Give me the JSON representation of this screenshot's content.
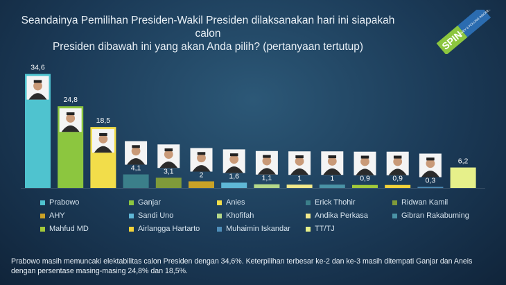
{
  "title_lines": [
    "Seandainya Pemilihan Presiden-Wakil Presiden dilaksanakan hari ini siapakah calon",
    "Presiden dibawah ini yang akan Anda pilih? (pertanyaan tertutup)"
  ],
  "logo": {
    "text": "SPIN",
    "subtext": "SURVEY & POLLING INDONESIA",
    "color": "#8cc63f"
  },
  "footer": "Prabowo masih memuncaki elektabilitas calon Presiden dengan 34,6%. Keterpilihan terbesar ke-2 dan ke-3 masih ditempati Ganjar dan Aneis dengan persentase masing-masing 24,8% dan 18,5%.",
  "chart_data": {
    "type": "bar",
    "categories": [
      "Prabowo",
      "Ganjar",
      "Anies",
      "Erick Thohir",
      "Ridwan Kamil",
      "AHY",
      "Sandi Uno",
      "Khofifah",
      "Andika Perkasa",
      "Gibran Rakabuming",
      "Mahfud MD",
      "Airlangga Hartarto",
      "Muhaimin Iskandar",
      "TT/TJ"
    ],
    "values": [
      34.6,
      24.8,
      18.5,
      4.1,
      3.1,
      2,
      1.6,
      1.1,
      1,
      1,
      0.9,
      0.9,
      0.3,
      6.2
    ],
    "value_labels": [
      "34,6",
      "24,8",
      "18,5",
      "4,1",
      "3,1",
      "2",
      "1,6",
      "1,1",
      "1",
      "1",
      "0,9",
      "0,9",
      "0,3",
      "6,2"
    ],
    "colors": [
      "#4fc3cf",
      "#8cc63f",
      "#f2dd4a",
      "#3b7f8a",
      "#7f9a3a",
      "#c9a227",
      "#5fb7d6",
      "#b5d98a",
      "#f3ea8c",
      "#4a93a6",
      "#a3c93a",
      "#f3d33a",
      "#4d8db8",
      "#e6f08a"
    ],
    "ylim": [
      0,
      36
    ],
    "legend_position": "bottom",
    "grid": false
  }
}
